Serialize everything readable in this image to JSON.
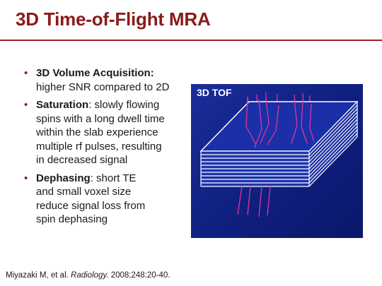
{
  "slide": {
    "title": "3D Time-of-Flight MRA",
    "bullets": [
      {
        "heading": "3D Volume Acquisition:",
        "lines": [
          "higher SNR compared to 2D"
        ]
      },
      {
        "heading": "Saturation",
        "heading_suffix": ": slowly flowing",
        "lines": [
          "spins with a long dwell time",
          "within the slab experience",
          "multiple rf pulses, resulting",
          "in decreased signal"
        ]
      },
      {
        "heading": "Dephasing",
        "heading_suffix": ": short TE",
        "lines": [
          "and small voxel size",
          "reduce signal loss from",
          "spin dephasing"
        ]
      }
    ],
    "figure": {
      "label": "3D TOF",
      "background_color": "#0f1f7e",
      "slab_color": "#ffffff",
      "vessel_color": "#e0349a"
    },
    "citation": {
      "authors": "Miyazaki M, et al. ",
      "journal": "Radiology.",
      "details": " 2008;248:20-40."
    }
  }
}
